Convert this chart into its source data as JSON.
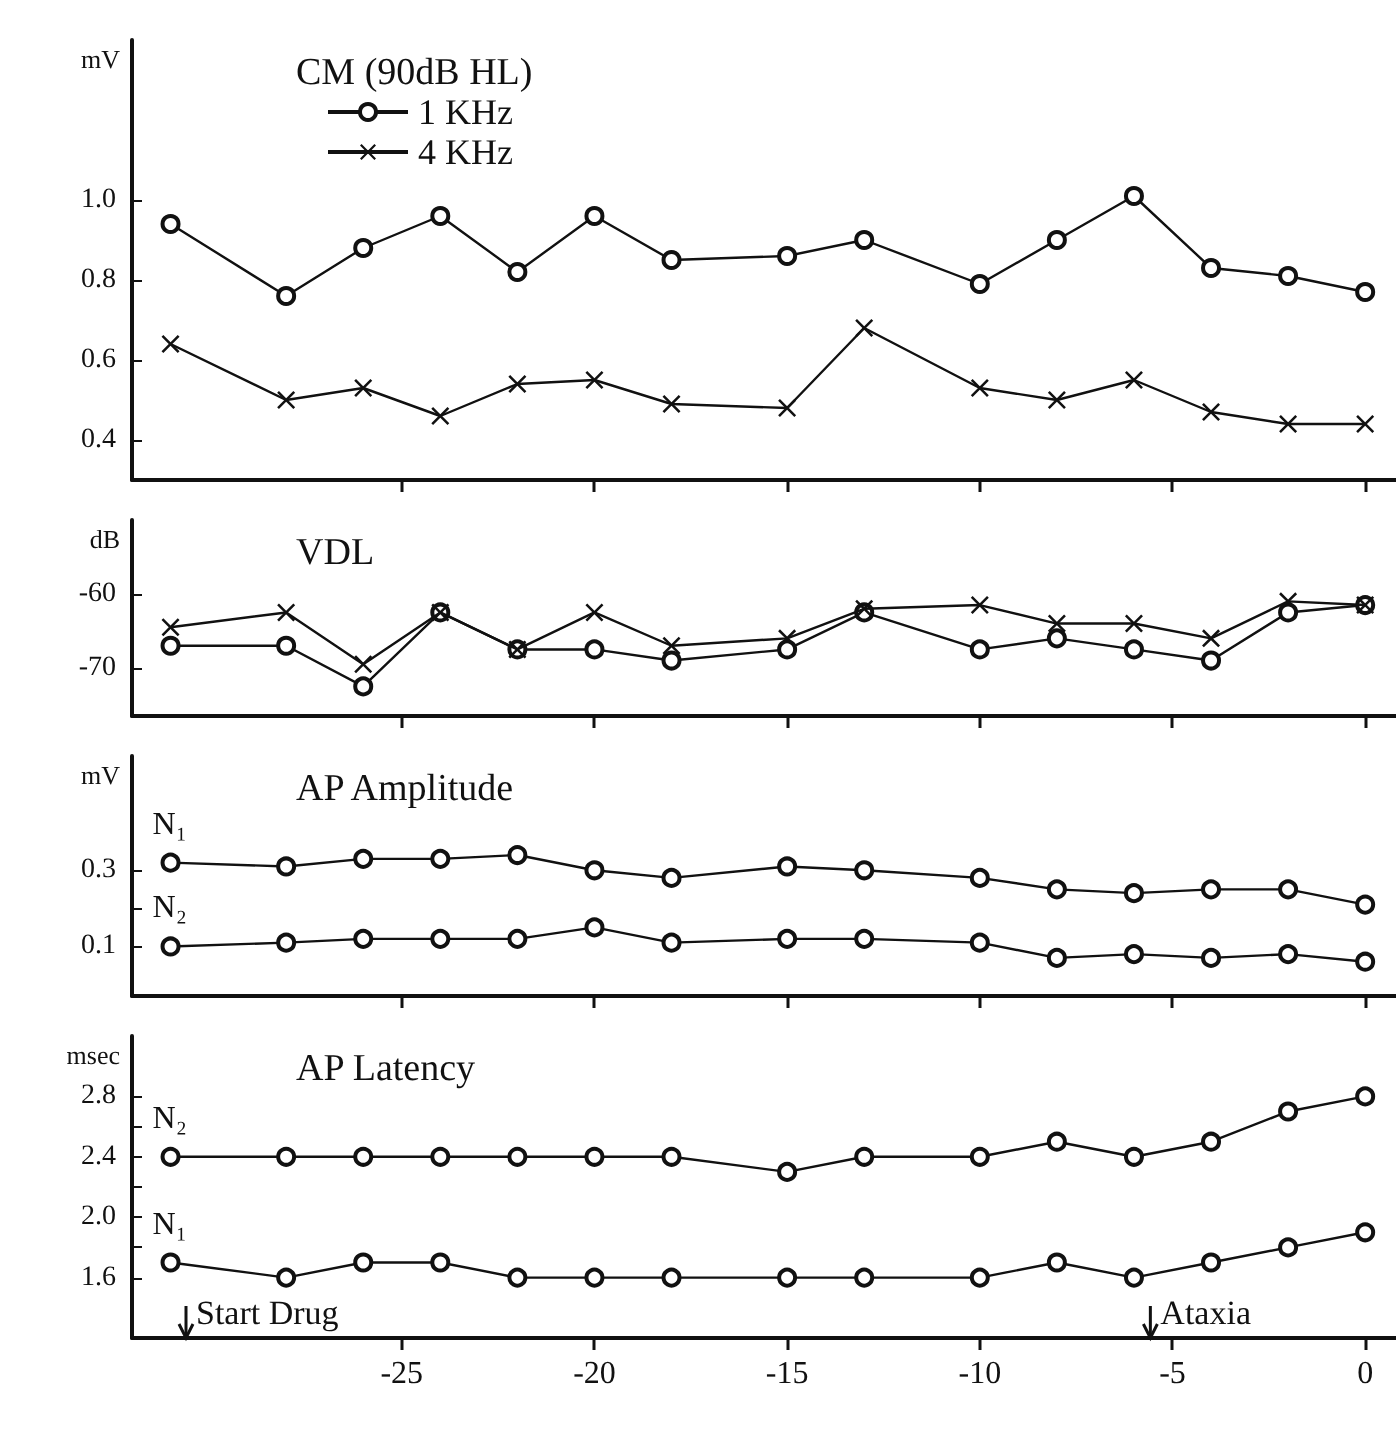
{
  "chart_data": [
    {
      "type": "line",
      "title": "CM (90dB HL)",
      "ylabel": "mV",
      "x": [
        -31,
        -28,
        -26,
        -24,
        -22,
        -20,
        -18,
        -15,
        -13,
        -10,
        -8,
        -6,
        -4,
        -2,
        0
      ],
      "xlim": [
        -32,
        0.8
      ],
      "xticks": [
        -25,
        -20,
        -15,
        -10,
        -5,
        0
      ],
      "ylim": [
        0.3,
        1.4
      ],
      "yticks": [
        0.4,
        0.6,
        0.8,
        {
          "value": 1,
          "label": "1.0"
        }
      ],
      "tick_labels": "y",
      "legend": "top left",
      "grid": false,
      "series": [
        {
          "name": "1 KHz",
          "color": "#111111",
          "marker": "circle",
          "values": [
            0.94,
            0.76,
            0.88,
            0.96,
            0.82,
            0.96,
            0.85,
            0.86,
            0.9,
            0.79,
            0.9,
            1.01,
            0.83,
            0.81,
            0.77
          ]
        },
        {
          "name": "4 KHz",
          "color": "#111111",
          "marker": "cross",
          "values": [
            0.64,
            0.5,
            0.53,
            0.46,
            0.54,
            0.55,
            0.49,
            0.48,
            0.68,
            0.53,
            0.5,
            0.55,
            0.47,
            0.44,
            0.44
          ]
        }
      ]
    },
    {
      "type": "line",
      "title": "VDL",
      "ylabel": "dB",
      "x": [
        -31,
        -28,
        -26,
        -24,
        -22,
        -20,
        -18,
        -15,
        -13,
        -10,
        -8,
        -6,
        -4,
        -2,
        0
      ],
      "xlim": [
        -32,
        0.8
      ],
      "xticks": [
        -25,
        -20,
        -15,
        -10,
        -5,
        0
      ],
      "ylim": [
        -76.5,
        -50
      ],
      "yticks": [
        -70,
        -60
      ],
      "tick_labels": "y",
      "grid": false,
      "series": [
        {
          "color": "#111111",
          "marker": "cross",
          "values": [
            -64.5,
            -62.5,
            -69.5,
            -62.5,
            -67.5,
            -62.5,
            -67,
            -66,
            -62,
            -61.5,
            -64,
            -64,
            -66,
            -61,
            -61.5
          ]
        },
        {
          "color": "#111111",
          "marker": "circle",
          "values": [
            -67,
            -67,
            -72.5,
            -62.5,
            -67.5,
            -67.5,
            -69,
            -67.5,
            -62.5,
            -67.5,
            -66,
            -67.5,
            -69,
            -62.5,
            -61.5
          ]
        }
      ]
    },
    {
      "type": "line",
      "title": "AP Amplitude",
      "ylabel": "mV",
      "x": [
        -31,
        -28,
        -26,
        -24,
        -22,
        -20,
        -18,
        -15,
        -13,
        -10,
        -8,
        -6,
        -4,
        -2,
        0
      ],
      "xlim": [
        -32,
        0.8
      ],
      "xticks": [
        -25,
        -20,
        -15,
        -10,
        -5,
        0
      ],
      "ylim": [
        -0.03,
        0.6
      ],
      "yticks": [
        0.1,
        {
          "value": 0.2,
          "label": null
        },
        0.3
      ],
      "tick_labels": "y",
      "grid": false,
      "series": [
        {
          "name": "N₁",
          "color": "#111111",
          "marker": "circle",
          "values": [
            0.32,
            0.31,
            0.33,
            0.33,
            0.34,
            0.3,
            0.28,
            0.31,
            0.3,
            0.28,
            0.25,
            0.24,
            0.25,
            0.25,
            0.21
          ]
        },
        {
          "name": "N₂",
          "color": "#111111",
          "marker": "circle",
          "values": [
            0.1,
            0.11,
            0.12,
            0.12,
            0.12,
            0.15,
            0.11,
            0.12,
            0.12,
            0.11,
            0.07,
            0.08,
            0.07,
            0.08,
            0.06
          ]
        }
      ]
    },
    {
      "type": "line",
      "title": "AP Latency",
      "ylabel": "msec",
      "x": [
        -31,
        -28,
        -26,
        -24,
        -22,
        -20,
        -18,
        -15,
        -13,
        -10,
        -8,
        -6,
        -4,
        -2,
        0
      ],
      "xlim": [
        -32,
        0.8
      ],
      "xticks": [
        -25,
        -20,
        -15,
        -10,
        -5,
        0
      ],
      "ylim": [
        1.2,
        3.2
      ],
      "yticks": [
        1.6,
        {
          "value": 1.8,
          "label": null
        },
        {
          "value": 2,
          "label": "2.0"
        },
        {
          "value": 2.2,
          "label": null
        },
        2.4,
        {
          "value": 2.6,
          "label": null
        },
        2.8
      ],
      "grid": false,
      "annotations": [
        "Start Drug",
        "Ataxia"
      ],
      "series": [
        {
          "name": "N₂",
          "color": "#111111",
          "marker": "circle",
          "values": [
            2.4,
            2.4,
            2.4,
            2.4,
            2.4,
            2.4,
            2.4,
            2.3,
            2.4,
            2.4,
            2.5,
            2.4,
            2.5,
            2.7,
            2.8
          ]
        },
        {
          "name": "N₁",
          "color": "#111111",
          "marker": "circle",
          "values": [
            1.7,
            1.6,
            1.7,
            1.7,
            1.6,
            1.6,
            1.6,
            1.6,
            1.6,
            1.6,
            1.7,
            1.6,
            1.7,
            1.8,
            1.9
          ]
        }
      ]
    }
  ]
}
